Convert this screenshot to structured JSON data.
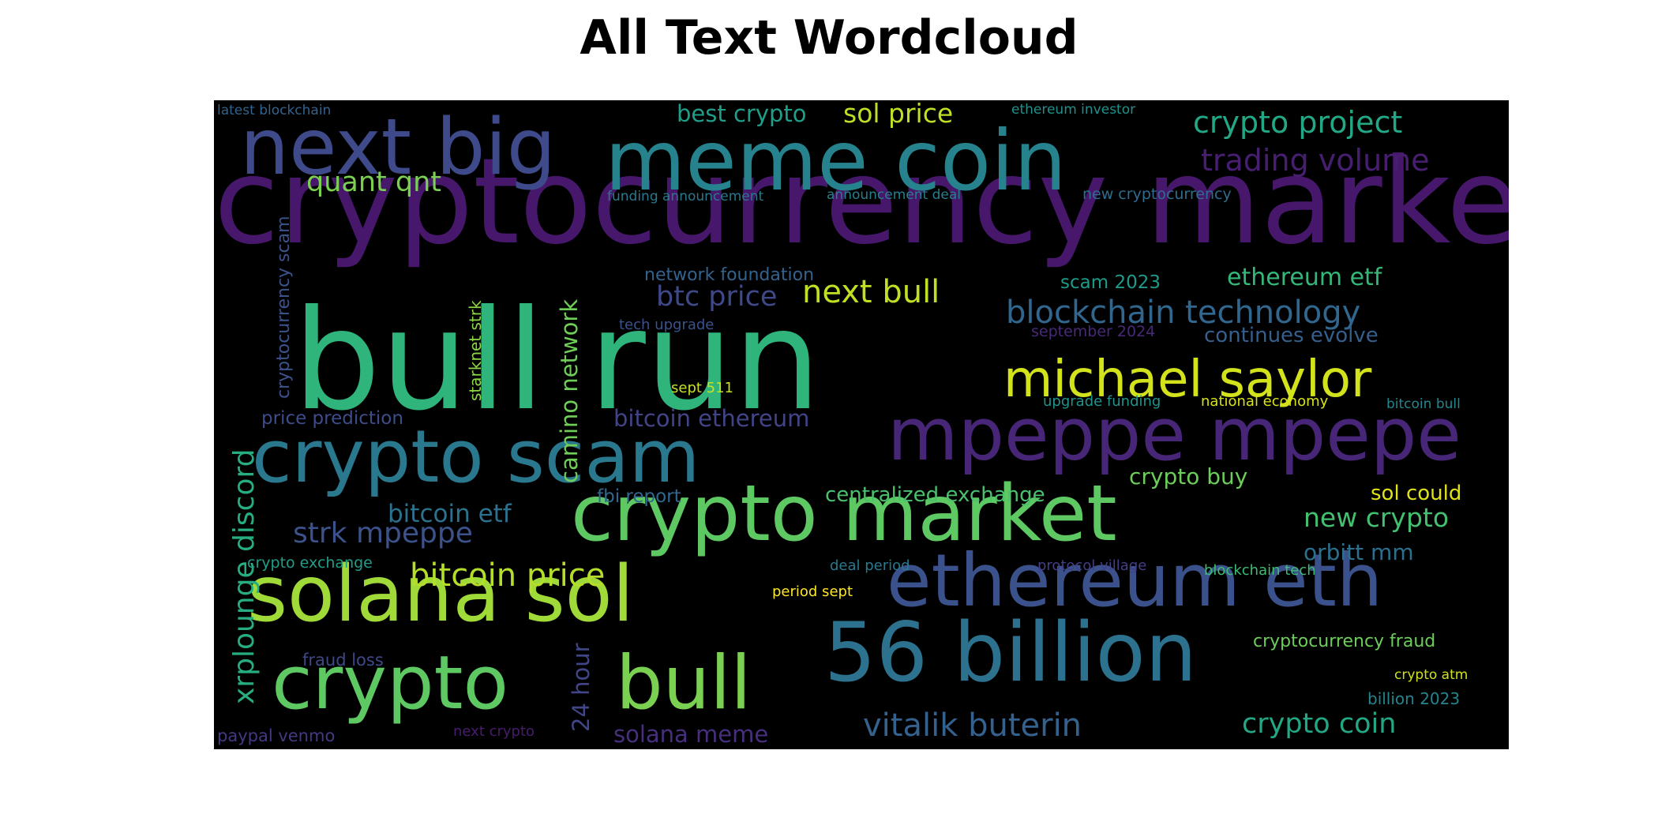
{
  "figure": {
    "title": "All Text Wordcloud"
  },
  "wordcloud": {
    "background": "#000000",
    "words": [
      {
        "text": "cryptocurrency market",
        "color": "#46176b"
      },
      {
        "text": "bull run",
        "color": "#2fb47c"
      },
      {
        "text": "meme coin",
        "color": "#26838e"
      },
      {
        "text": "next big",
        "color": "#3e4a89"
      },
      {
        "text": "crypto market",
        "color": "#5ec962"
      },
      {
        "text": "56 billion",
        "color": "#2c728e"
      },
      {
        "text": "mpeppe mpepe",
        "color": "#482677"
      },
      {
        "text": "ethereum eth",
        "color": "#3b518b"
      },
      {
        "text": "solana sol",
        "color": "#a0da39"
      },
      {
        "text": "crypto scam",
        "color": "#2a788e"
      },
      {
        "text": "crypto",
        "color": "#5ec962"
      },
      {
        "text": "bull",
        "color": "#7ad151"
      },
      {
        "text": "michael saylor",
        "color": "#d2e21b"
      },
      {
        "text": "crypto project",
        "color": "#22a884"
      },
      {
        "text": "trading volume",
        "color": "#481f70"
      },
      {
        "text": "blockchain technology",
        "color": "#31668e"
      },
      {
        "text": "vitalik buterin",
        "color": "#34618d"
      },
      {
        "text": "bitcoin price",
        "color": "#b5de2b"
      },
      {
        "text": "strk mpeppe",
        "color": "#3b528b"
      },
      {
        "text": "xrplounge discord",
        "color": "#27ad81"
      },
      {
        "text": "quant qnt",
        "color": "#7ad151"
      },
      {
        "text": "sol price",
        "color": "#bddf26"
      },
      {
        "text": "best crypto",
        "color": "#1f9e89"
      },
      {
        "text": "next bull",
        "color": "#c2df23"
      },
      {
        "text": "btc price",
        "color": "#3f4889"
      },
      {
        "text": "ethereum etf",
        "color": "#35b779"
      },
      {
        "text": "continues evolve",
        "color": "#355f8d"
      },
      {
        "text": "crypto buy",
        "color": "#6ccd5a"
      },
      {
        "text": "centralized exchange",
        "color": "#4ac16d"
      },
      {
        "text": "new crypto",
        "color": "#44bf70"
      },
      {
        "text": "orbitt mm",
        "color": "#2d708e"
      },
      {
        "text": "sol could",
        "color": "#dde318"
      },
      {
        "text": "crypto coin",
        "color": "#22a884"
      },
      {
        "text": "bitcoin etf",
        "color": "#2c728e"
      },
      {
        "text": "bitcoin ethereum",
        "color": "#414487"
      },
      {
        "text": "camino network",
        "color": "#6ece58"
      },
      {
        "text": "24 hour",
        "color": "#404688"
      },
      {
        "text": "solana meme",
        "color": "#472f7d"
      },
      {
        "text": "cryptocurrency scam",
        "color": "#3b528b"
      },
      {
        "text": "starknet strk",
        "color": "#8bd646"
      },
      {
        "text": "price prediction",
        "color": "#3e4c8a"
      },
      {
        "text": "network foundation",
        "color": "#33638d"
      },
      {
        "text": "scam 2023",
        "color": "#1f9a8a"
      },
      {
        "text": "september 2024",
        "color": "#482979"
      },
      {
        "text": "tech upgrade",
        "color": "#3b528b"
      },
      {
        "text": "sept 511",
        "color": "#c8e020"
      },
      {
        "text": "upgrade funding",
        "color": "#1f948c"
      },
      {
        "text": "national economy",
        "color": "#d8e219"
      },
      {
        "text": "bitcoin bull",
        "color": "#24868e"
      },
      {
        "text": "fbi report",
        "color": "#31688e"
      },
      {
        "text": "cryptocurrency fraud",
        "color": "#6ccd5a"
      },
      {
        "text": "crypto atm",
        "color": "#d0e11c"
      },
      {
        "text": "billion 2023",
        "color": "#25848e"
      },
      {
        "text": "blockchain tech",
        "color": "#3fbc73"
      },
      {
        "text": "protocol village",
        "color": "#433e85"
      },
      {
        "text": "deal period",
        "color": "#2a788e"
      },
      {
        "text": "period sept",
        "color": "#fde725"
      },
      {
        "text": "crypto exchange",
        "color": "#1f9e89"
      },
      {
        "text": "fraud loss",
        "color": "#3e4989"
      },
      {
        "text": "paypal venmo",
        "color": "#443983"
      },
      {
        "text": "next crypto",
        "color": "#481c6e"
      },
      {
        "text": "latest blockchain",
        "color": "#33638d"
      },
      {
        "text": "ethereum investor",
        "color": "#21918c"
      },
      {
        "text": "funding announcement",
        "color": "#2a788e"
      },
      {
        "text": "announcement deal",
        "color": "#277f8e"
      },
      {
        "text": "new cryptocurrency",
        "color": "#2f6c8e"
      }
    ]
  }
}
